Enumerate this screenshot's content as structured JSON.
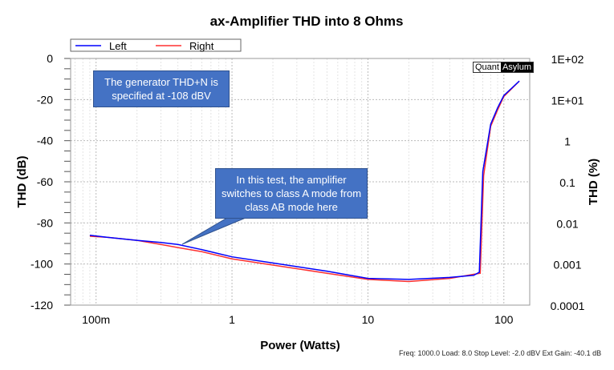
{
  "chart_data": {
    "type": "line",
    "title": "ax-Amplifier THD into 8 Ohms",
    "xlabel": "Power (Watts)",
    "ylabel": "THD (dB)",
    "ylabel_right": "THD (%)",
    "xscale": "log",
    "xlim": [
      0.065,
      155
    ],
    "ylim": [
      -120,
      0
    ],
    "x_ticks": [
      {
        "v": 0.1,
        "label": "100m"
      },
      {
        "v": 1,
        "label": "1"
      },
      {
        "v": 10,
        "label": "10"
      },
      {
        "v": 100,
        "label": "100"
      }
    ],
    "y_ticks": [
      0,
      -20,
      -40,
      -60,
      -80,
      -100,
      -120
    ],
    "y_right_ticks": [
      "1E+02",
      "1E+01",
      "1",
      "0.1",
      "0.01",
      "0.001",
      "0.0001"
    ],
    "grid": true,
    "legend": "top-left",
    "series": [
      {
        "name": "Left",
        "color": "#0000ff",
        "x": [
          0.09,
          0.12,
          0.2,
          0.3,
          0.4,
          0.6,
          1,
          2,
          5,
          10,
          20,
          40,
          60,
          66,
          70,
          80,
          90,
          100,
          130
        ],
        "y": [
          -86,
          -87,
          -88.5,
          -89.5,
          -90.5,
          -93,
          -96.5,
          -99.5,
          -103.5,
          -107,
          -107.5,
          -106.5,
          -105.5,
          -104,
          -55,
          -32,
          -24,
          -18,
          -11
        ]
      },
      {
        "name": "Right",
        "color": "#ff3030",
        "x": [
          0.09,
          0.12,
          0.2,
          0.3,
          0.4,
          0.6,
          1,
          2,
          5,
          10,
          20,
          40,
          60,
          67,
          71,
          80,
          90,
          100,
          130
        ],
        "y": [
          -86.5,
          -87,
          -88.5,
          -90.5,
          -92,
          -94,
          -97.5,
          -100.5,
          -104.5,
          -107.5,
          -108.5,
          -107,
          -105,
          -104.5,
          -57,
          -33,
          -25,
          -18.5,
          -11
        ]
      }
    ],
    "annotations": [
      "The generator  THD+N is specified at -108 dBV",
      "In this test, the amplifier switches to class A mode from class AB mode here"
    ]
  },
  "logo": "QuantAsylum",
  "footer": "Freq: 1000.0 Load: 8.0 Stop Level: -2.0 dBV  Ext Gain: -40.1 dB"
}
